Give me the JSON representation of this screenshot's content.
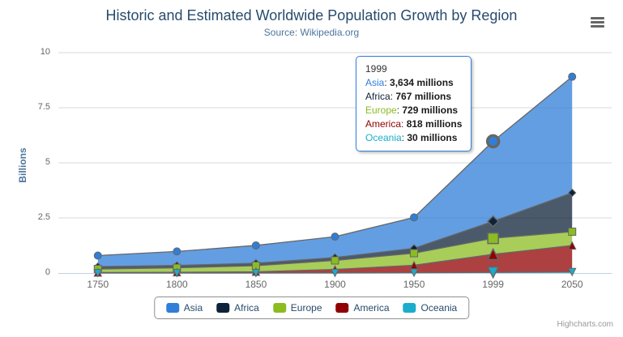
{
  "credits": "Highcharts.com",
  "tooltip": {
    "header": "1999",
    "separator": ": ",
    "rows": [
      {
        "name": "Asia",
        "value": "3,634 millions"
      },
      {
        "name": "Africa",
        "value": "767 millions"
      },
      {
        "name": "Europe",
        "value": "729 millions"
      },
      {
        "name": "America",
        "value": "818 millions"
      },
      {
        "name": "Oceania",
        "value": "30 millions"
      }
    ]
  },
  "chart_data": {
    "type": "area",
    "stacking": "normal",
    "title": "Historic and Estimated Worldwide Population Growth by Region",
    "subtitle": "Source: Wikipedia.org",
    "categories": [
      "1750",
      "1800",
      "1850",
      "1900",
      "1950",
      "1999",
      "2050"
    ],
    "xlabel": "",
    "ylabel": "Billions",
    "ylim": [
      0,
      10
    ],
    "yticks": [
      0,
      2.5,
      5,
      7.5,
      10
    ],
    "ytick_labels": [
      "0",
      "2.5",
      "5",
      "7.5",
      "10"
    ],
    "unit": "millions",
    "grid": true,
    "legend_position": "bottom",
    "line_color": "#666666",
    "fill_opacity": 0.75,
    "hover_index": 5,
    "series": [
      {
        "name": "Asia",
        "color": "#2f7ed8",
        "marker": "circle",
        "values": [
          502,
          635,
          809,
          947,
          1402,
          3634,
          5268
        ]
      },
      {
        "name": "Africa",
        "color": "#0d233a",
        "marker": "diamond",
        "values": [
          106,
          107,
          111,
          133,
          221,
          767,
          1766
        ]
      },
      {
        "name": "Europe",
        "color": "#8bbc21",
        "marker": "square",
        "values": [
          163,
          203,
          276,
          408,
          547,
          729,
          628
        ]
      },
      {
        "name": "America",
        "color": "#910000",
        "marker": "triangle",
        "values": [
          18,
          31,
          54,
          156,
          339,
          818,
          1201
        ]
      },
      {
        "name": "Oceania",
        "color": "#1aadce",
        "marker": "triangle-down",
        "values": [
          2,
          2,
          2,
          6,
          13,
          30,
          46
        ]
      }
    ]
  }
}
